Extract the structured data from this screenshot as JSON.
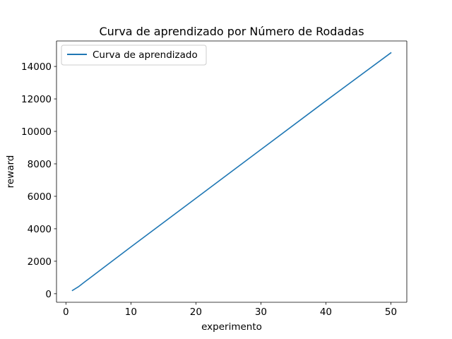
{
  "chart_data": {
    "type": "line",
    "title": "Curva de aprendizado por Número de Rodadas",
    "xlabel": "experimento",
    "ylabel": "reward",
    "xlim": [
      -1.45,
      52.45
    ],
    "ylim": [
      -528,
      15570
    ],
    "xticks": [
      0,
      10,
      20,
      30,
      40,
      50
    ],
    "yticks": [
      0,
      2000,
      4000,
      6000,
      8000,
      10000,
      12000,
      14000
    ],
    "grid": false,
    "legend_position": "top-left",
    "series": [
      {
        "name": "Curva de aprendizado",
        "color": "#1f77b4",
        "x": [
          1,
          2,
          3,
          10,
          20,
          30,
          40,
          50
        ],
        "y": [
          200,
          450,
          760,
          2880,
          5880,
          8880,
          11880,
          14840
        ]
      }
    ]
  }
}
